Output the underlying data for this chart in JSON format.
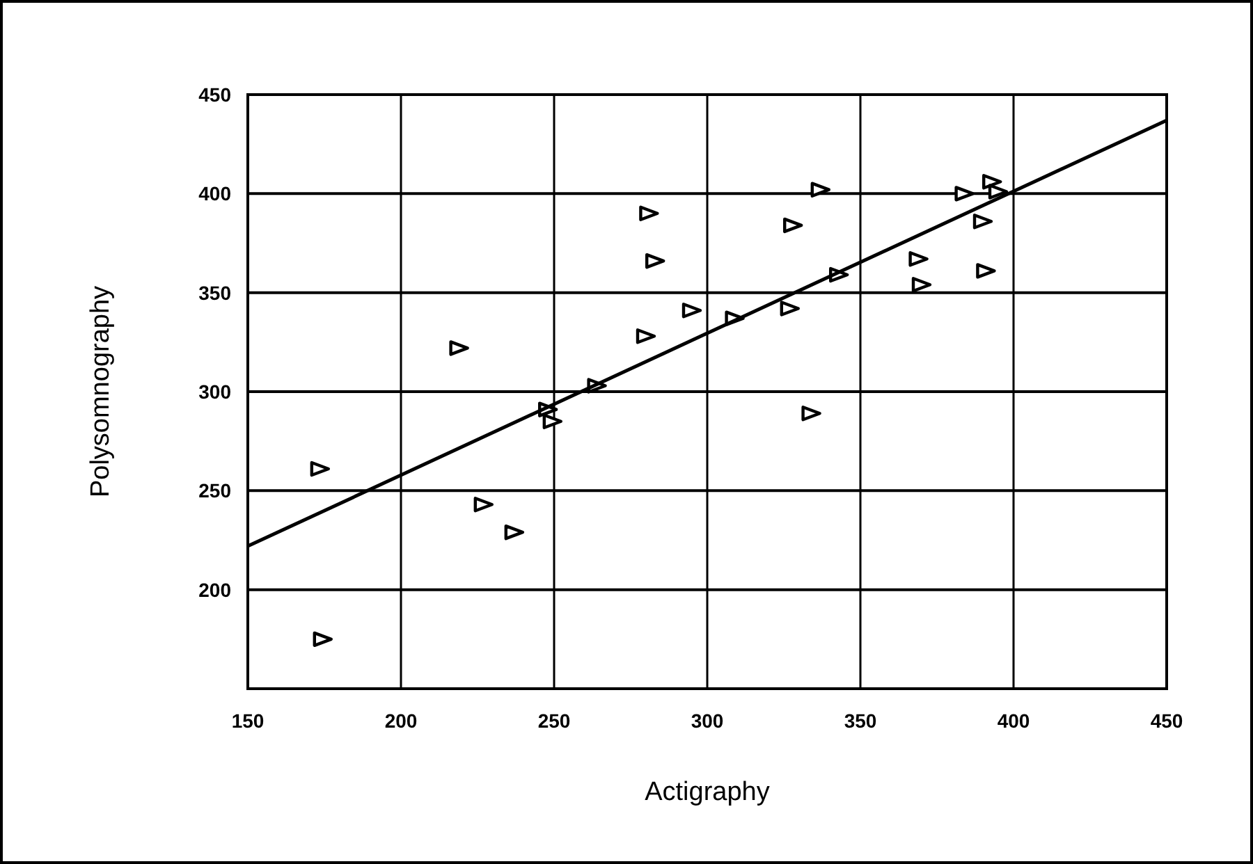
{
  "chart_data": {
    "type": "scatter",
    "xlabel": "Actigraphy",
    "ylabel": "Polysomnography",
    "xlim": [
      150,
      450
    ],
    "ylim": [
      150,
      450
    ],
    "xticks": [
      150,
      200,
      250,
      300,
      350,
      400,
      450
    ],
    "yticks": [
      200,
      250,
      300,
      350,
      400,
      450
    ],
    "grid": true,
    "series": [
      {
        "color": "#000000",
        "marker": "triangle",
        "x": [
          173.6,
          174.5,
          219,
          227,
          237,
          248,
          249.5,
          264,
          280,
          281,
          283,
          295,
          309,
          327,
          328,
          334,
          337,
          343,
          369,
          370,
          384,
          390,
          391,
          393,
          395
        ],
        "values": [
          261,
          175,
          322,
          243,
          229,
          291,
          285,
          303,
          328,
          390,
          366,
          341,
          337,
          342,
          384,
          289,
          402,
          359,
          367,
          354,
          400,
          386,
          361,
          406,
          401
        ]
      },
      {
        "type": "line",
        "color": "#000000",
        "x": [
          150,
          450
        ],
        "values": [
          222,
          437
        ],
        "marker": "none"
      }
    ]
  }
}
